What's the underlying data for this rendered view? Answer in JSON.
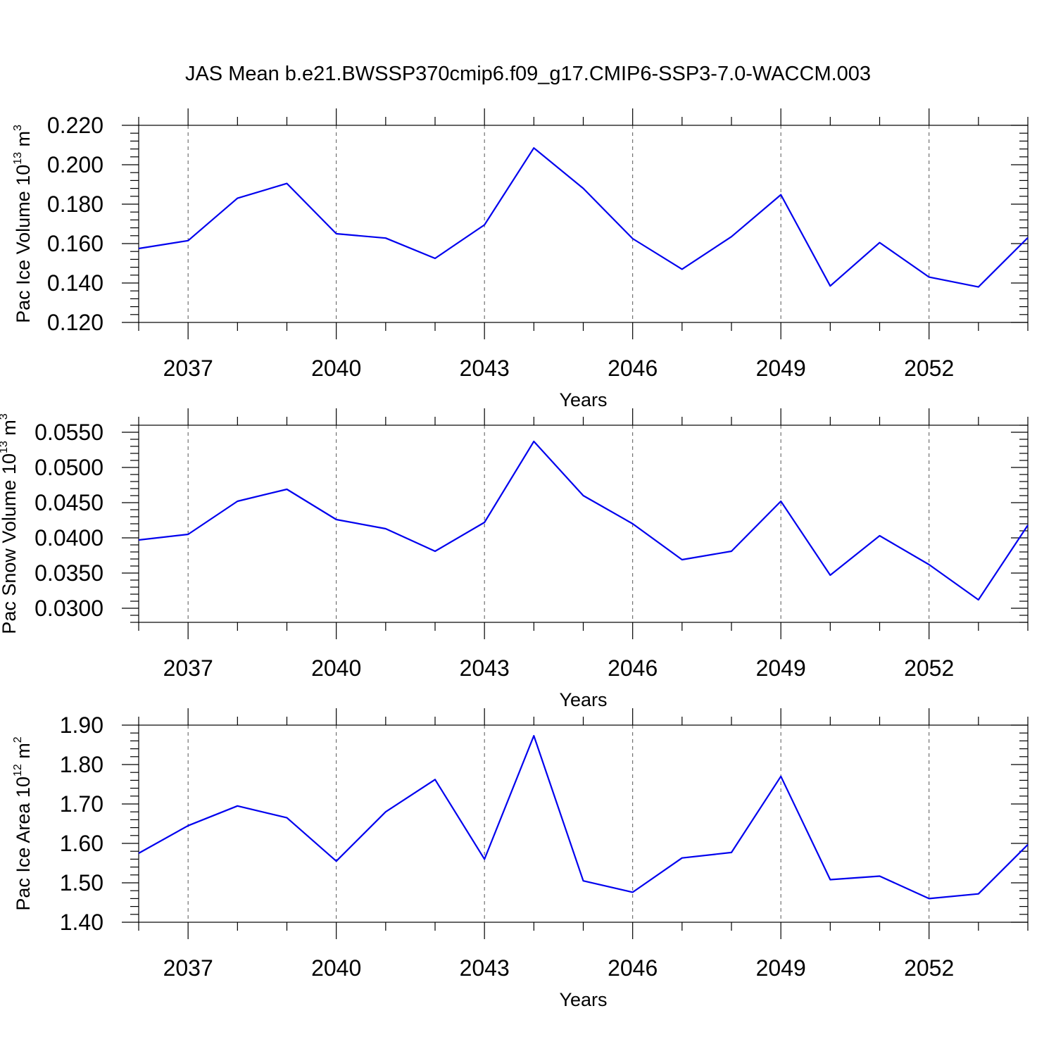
{
  "title": "JAS Mean b.e21.BWSSP370cmip6.f09_g17.CMIP6-SSP3-7.0-WACCM.003",
  "colors": {
    "line": "#0000ee",
    "axis": "#000000",
    "grid": "#555555"
  },
  "chart_data": [
    {
      "type": "line",
      "ylabel_main": "Pac Ice Volume 10",
      "ylabel_exp": "13",
      "ylabel_unit": " m",
      "ylabel_unit_exp": "3",
      "xlabel": "Years",
      "xlim": [
        2036,
        2054
      ],
      "ylim": [
        0.12,
        0.22
      ],
      "yticks": [
        0.12,
        0.14,
        0.16,
        0.18,
        0.2,
        0.22
      ],
      "ytick_labels": [
        "0.120",
        "0.140",
        "0.160",
        "0.180",
        "0.200",
        "0.220"
      ],
      "xticks": [
        2037,
        2040,
        2043,
        2046,
        2049,
        2052
      ],
      "xtick_labels": [
        "2037",
        "2040",
        "2043",
        "2046",
        "2049",
        "2052"
      ],
      "grid": "vertical dashed at major x ticks",
      "x": [
        2036,
        2037,
        2038,
        2039,
        2040,
        2041,
        2042,
        2043,
        2044,
        2045,
        2046,
        2047,
        2048,
        2049,
        2050,
        2051,
        2052,
        2053,
        2054
      ],
      "series": [
        {
          "values": [
            0.1575,
            0.1615,
            0.183,
            0.1905,
            0.165,
            0.1628,
            0.1525,
            0.1695,
            0.2085,
            0.188,
            0.1625,
            0.147,
            0.1635,
            0.1848,
            0.1385,
            0.1605,
            0.143,
            0.138,
            0.163
          ]
        }
      ]
    },
    {
      "type": "line",
      "ylabel_main": "Pac Snow Volume 10",
      "ylabel_exp": "13",
      "ylabel_unit": " m",
      "ylabel_unit_exp": "3",
      "xlabel": "Years",
      "xlim": [
        2036,
        2054
      ],
      "ylim": [
        0.028,
        0.056
      ],
      "yticks": [
        0.03,
        0.035,
        0.04,
        0.045,
        0.05,
        0.055
      ],
      "ytick_labels": [
        "0.0300",
        "0.0350",
        "0.0400",
        "0.0450",
        "0.0500",
        "0.0550"
      ],
      "xticks": [
        2037,
        2040,
        2043,
        2046,
        2049,
        2052
      ],
      "xtick_labels": [
        "2037",
        "2040",
        "2043",
        "2046",
        "2049",
        "2052"
      ],
      "grid": "vertical dashed at major x ticks",
      "x": [
        2036,
        2037,
        2038,
        2039,
        2040,
        2041,
        2042,
        2043,
        2044,
        2045,
        2046,
        2047,
        2048,
        2049,
        2050,
        2051,
        2052,
        2053,
        2054
      ],
      "series": [
        {
          "values": [
            0.0397,
            0.0405,
            0.0452,
            0.0469,
            0.0426,
            0.0413,
            0.0381,
            0.0422,
            0.0537,
            0.046,
            0.042,
            0.0369,
            0.0381,
            0.0452,
            0.0347,
            0.0403,
            0.0362,
            0.0312,
            0.0418
          ]
        }
      ]
    },
    {
      "type": "line",
      "ylabel_main": "Pac Ice Area 10",
      "ylabel_exp": "12",
      "ylabel_unit": " m",
      "ylabel_unit_exp": "2",
      "xlabel": "Years",
      "xlim": [
        2036,
        2054
      ],
      "ylim": [
        1.4,
        1.9
      ],
      "yticks": [
        1.4,
        1.5,
        1.6,
        1.7,
        1.8,
        1.9
      ],
      "ytick_labels": [
        "1.40",
        "1.50",
        "1.60",
        "1.70",
        "1.80",
        "1.90"
      ],
      "xticks": [
        2037,
        2040,
        2043,
        2046,
        2049,
        2052
      ],
      "xtick_labels": [
        "2037",
        "2040",
        "2043",
        "2046",
        "2049",
        "2052"
      ],
      "grid": "vertical dashed at major x ticks",
      "x": [
        2036,
        2037,
        2038,
        2039,
        2040,
        2041,
        2042,
        2043,
        2044,
        2045,
        2046,
        2047,
        2048,
        2049,
        2050,
        2051,
        2052,
        2053,
        2054
      ],
      "series": [
        {
          "values": [
            1.575,
            1.645,
            1.695,
            1.665,
            1.555,
            1.68,
            1.762,
            1.56,
            1.873,
            1.505,
            1.476,
            1.563,
            1.577,
            1.77,
            1.508,
            1.517,
            1.46,
            1.472,
            1.597
          ]
        }
      ]
    }
  ]
}
